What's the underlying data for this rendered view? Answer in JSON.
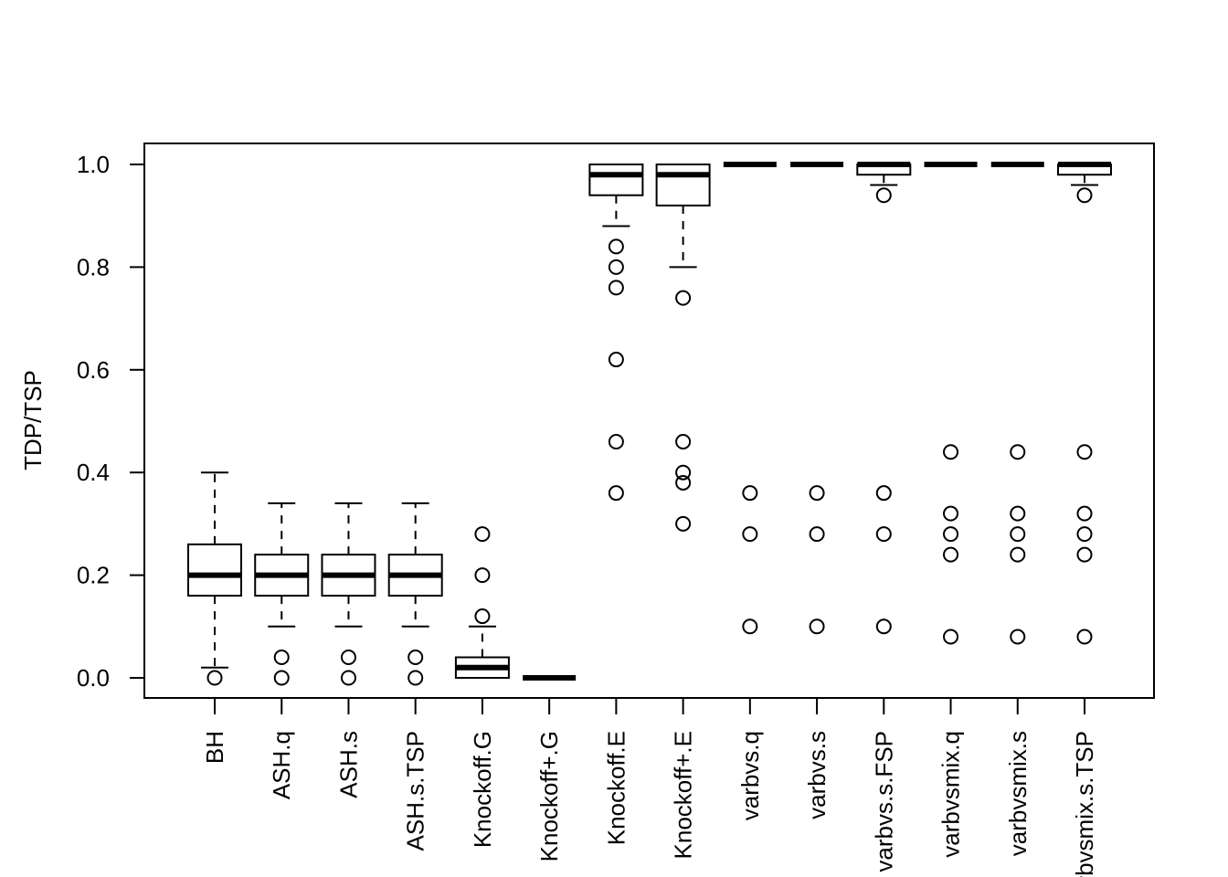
{
  "chart_data": {
    "type": "boxplot",
    "title": "",
    "xlabel": "",
    "ylabel": "TDP/TSP",
    "ylim": [
      -0.04,
      1.04
    ],
    "yticks": [
      0.0,
      0.2,
      0.4,
      0.6,
      0.8,
      1.0
    ],
    "ytick_labels": [
      "0.0",
      "0.2",
      "0.4",
      "0.6",
      "0.8",
      "1.0"
    ],
    "categories": [
      "BH",
      "ASH.q",
      "ASH.s",
      "ASH.s.TSP",
      "Knockoff.G",
      "Knockoff+.G",
      "Knockoff.E",
      "Knockoff+.E",
      "varbvs.q",
      "varbvs.s",
      "varbvs.s.FSP",
      "varbvsmix.q",
      "varbvsmix.s",
      "varbvsmix.s.TSP"
    ],
    "boxes": [
      {
        "name": "BH",
        "whisker_low": 0.02,
        "q1": 0.16,
        "median": 0.2,
        "q3": 0.26,
        "whisker_high": 0.4,
        "outliers": [
          0.0
        ]
      },
      {
        "name": "ASH.q",
        "whisker_low": 0.1,
        "q1": 0.16,
        "median": 0.2,
        "q3": 0.24,
        "whisker_high": 0.34,
        "outliers": [
          0.04,
          0.0
        ]
      },
      {
        "name": "ASH.s",
        "whisker_low": 0.1,
        "q1": 0.16,
        "median": 0.2,
        "q3": 0.24,
        "whisker_high": 0.34,
        "outliers": [
          0.04,
          0.0
        ]
      },
      {
        "name": "ASH.s.TSP",
        "whisker_low": 0.1,
        "q1": 0.16,
        "median": 0.2,
        "q3": 0.24,
        "whisker_high": 0.34,
        "outliers": [
          0.04,
          0.0
        ]
      },
      {
        "name": "Knockoff.G",
        "whisker_low": 0.0,
        "q1": 0.0,
        "median": 0.02,
        "q3": 0.04,
        "whisker_high": 0.1,
        "outliers": [
          0.28,
          0.2,
          0.12
        ]
      },
      {
        "name": "Knockoff+.G",
        "whisker_low": 0.0,
        "q1": 0.0,
        "median": 0.0,
        "q3": 0.0,
        "whisker_high": 0.0,
        "outliers": []
      },
      {
        "name": "Knockoff.E",
        "whisker_low": 0.88,
        "q1": 0.94,
        "median": 0.98,
        "q3": 1.0,
        "whisker_high": 1.0,
        "outliers": [
          0.84,
          0.8,
          0.76,
          0.62,
          0.46,
          0.36
        ]
      },
      {
        "name": "Knockoff+.E",
        "whisker_low": 0.8,
        "q1": 0.92,
        "median": 0.98,
        "q3": 1.0,
        "whisker_high": 1.0,
        "outliers": [
          0.74,
          0.46,
          0.4,
          0.38,
          0.3
        ]
      },
      {
        "name": "varbvs.q",
        "whisker_low": 1.0,
        "q1": 1.0,
        "median": 1.0,
        "q3": 1.0,
        "whisker_high": 1.0,
        "outliers": [
          0.36,
          0.28,
          0.1
        ]
      },
      {
        "name": "varbvs.s",
        "whisker_low": 1.0,
        "q1": 1.0,
        "median": 1.0,
        "q3": 1.0,
        "whisker_high": 1.0,
        "outliers": [
          0.36,
          0.28,
          0.1
        ]
      },
      {
        "name": "varbvs.s.FSP",
        "whisker_low": 0.96,
        "q1": 0.98,
        "median": 1.0,
        "q3": 1.0,
        "whisker_high": 1.0,
        "outliers": [
          0.94,
          0.36,
          0.28,
          0.1
        ]
      },
      {
        "name": "varbvsmix.q",
        "whisker_low": 1.0,
        "q1": 1.0,
        "median": 1.0,
        "q3": 1.0,
        "whisker_high": 1.0,
        "outliers": [
          0.44,
          0.32,
          0.28,
          0.24,
          0.08
        ]
      },
      {
        "name": "varbvsmix.s",
        "whisker_low": 1.0,
        "q1": 1.0,
        "median": 1.0,
        "q3": 1.0,
        "whisker_high": 1.0,
        "outliers": [
          0.44,
          0.32,
          0.28,
          0.24,
          0.08
        ]
      },
      {
        "name": "varbvsmix.s.TSP",
        "whisker_low": 0.96,
        "q1": 0.98,
        "median": 1.0,
        "q3": 1.0,
        "whisker_high": 1.0,
        "outliers": [
          0.94,
          0.44,
          0.32,
          0.28,
          0.24,
          0.08
        ]
      }
    ],
    "grid": false,
    "legend": "none",
    "colors": {
      "line": "#000000",
      "box_fill": "#ffffff",
      "background": "#ffffff"
    }
  }
}
